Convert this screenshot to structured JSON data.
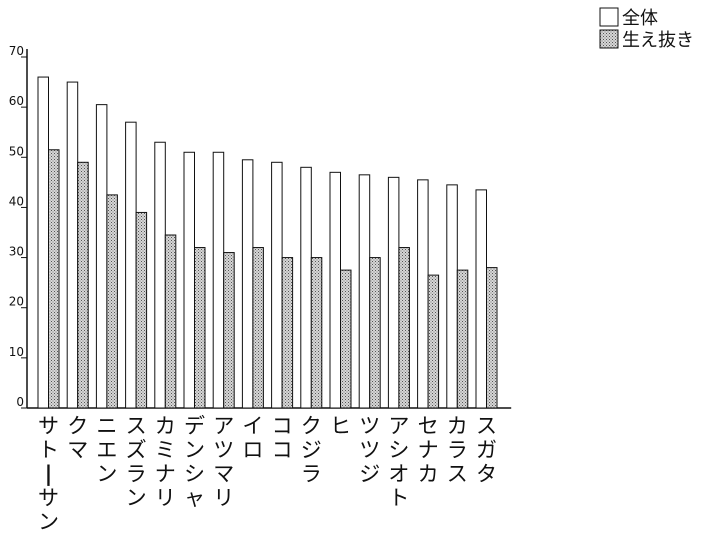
{
  "chart_data": {
    "type": "bar",
    "categories": [
      "サトーサン",
      "クマ",
      "ニエン",
      "スズラン",
      "カミナリ",
      "デンシャ",
      "アツマリ",
      "イロ",
      "ココ",
      "クジラ",
      "ヒ",
      "ツツジ",
      "アシオト",
      "セナカ",
      "カラス",
      "スガタ"
    ],
    "series": [
      {
        "name": "全体",
        "values": [
          66,
          65,
          60.5,
          57,
          53,
          51,
          51,
          49.5,
          49,
          48,
          47,
          46.5,
          46,
          45.5,
          44.5,
          43.5
        ],
        "fill": "#ffffff"
      },
      {
        "name": "生え抜き",
        "values": [
          51.5,
          49,
          42.5,
          39,
          34.5,
          32,
          31,
          32,
          30,
          30,
          27.5,
          30,
          32,
          26.5,
          27.5,
          28
        ],
        "fill": "#c8c8c8"
      }
    ],
    "yticks": [
      0,
      10,
      20,
      30,
      40,
      50,
      60,
      70
    ],
    "ylim": [
      0,
      70
    ],
    "legend": "top-right"
  }
}
